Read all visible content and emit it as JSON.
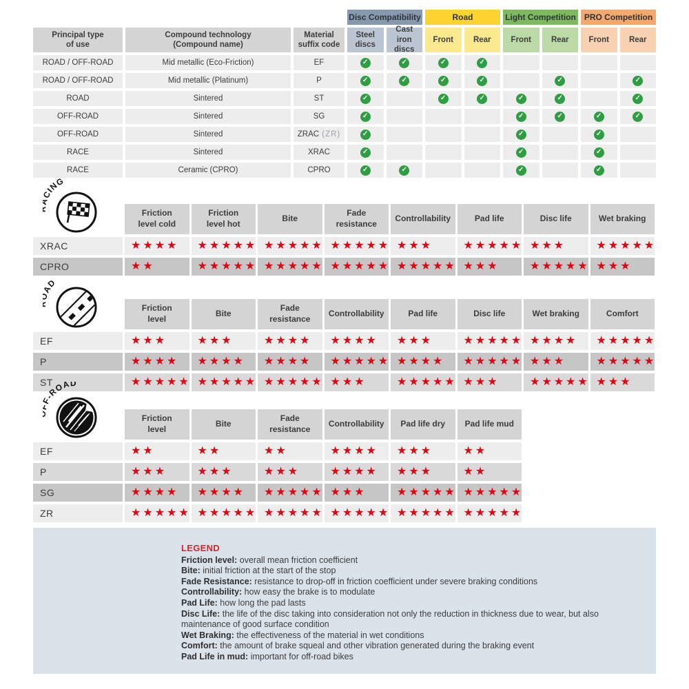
{
  "icons": {
    "check": "✓",
    "star": "★"
  },
  "colors": {
    "star_red": "#da0812",
    "check_green": "#2f9e43",
    "header_gray": "#d4d4d4",
    "row_light": "#ededed",
    "row_mid": "#d9d9d9",
    "row_dark": "#c6c6c6",
    "legend_bg": "#dbe3ea",
    "legend_title_red": "#d8232a",
    "disc_group_bg": "#8799ae",
    "disc_sub_bg": "#bcc6d3",
    "road_group_bg": "#fdd32f",
    "road_sub_bg": "#fbe98f",
    "light_comp_group_bg": "#7cba5d",
    "light_comp_sub_bg": "#bcdaa6",
    "pro_comp_group_bg": "#f4a86c",
    "pro_comp_sub_bg": "#f9d2b2"
  },
  "chart_data": [
    {
      "type": "table",
      "id": "compatibility",
      "corner_headers": [
        "Principal type\nof use",
        "Compound technology\n(Compound name)",
        "Material\nsuffix code"
      ],
      "groups": [
        {
          "label": "Disc Compatibility",
          "header_bg": "#8799ae",
          "sub_bg": "#bcc6d3",
          "subs": [
            "Steel\ndiscs",
            "Cast iron\ndiscs"
          ]
        },
        {
          "label": "Road",
          "header_bg": "#fdd32f",
          "sub_bg": "#fbe98f",
          "subs": [
            "Front",
            "Rear"
          ]
        },
        {
          "label": "Light Competition",
          "header_bg": "#7cba5d",
          "sub_bg": "#bcdaa6",
          "subs": [
            "Front",
            "Rear"
          ]
        },
        {
          "label": "PRO Competition",
          "header_bg": "#f4a86c",
          "sub_bg": "#f9d2b2",
          "subs": [
            "Front",
            "Rear"
          ]
        }
      ],
      "rows": [
        {
          "use": "ROAD / OFF-ROAD",
          "tech": "Mid metallic (Eco-Friction)",
          "code": "EF",
          "code_note": "",
          "checks": [
            1,
            1,
            1,
            1,
            0,
            0,
            0,
            0
          ]
        },
        {
          "use": "ROAD / OFF-ROAD",
          "tech": "Mid metallic (Platinum)",
          "code": "P",
          "code_note": "",
          "checks": [
            1,
            1,
            1,
            1,
            0,
            1,
            0,
            1
          ]
        },
        {
          "use": "ROAD",
          "tech": "Sintered",
          "code": "ST",
          "code_note": "",
          "checks": [
            1,
            0,
            1,
            1,
            1,
            1,
            0,
            1
          ]
        },
        {
          "use": "OFF-ROAD",
          "tech": "Sintered",
          "code": "SG",
          "code_note": "",
          "checks": [
            1,
            0,
            0,
            0,
            1,
            1,
            1,
            1
          ]
        },
        {
          "use": "OFF-ROAD",
          "tech": "Sintered",
          "code": "ZRAC",
          "code_note": "(ZR)",
          "checks": [
            1,
            0,
            0,
            0,
            1,
            0,
            1,
            0
          ]
        },
        {
          "use": "RACE",
          "tech": "Sintered",
          "code": "XRAC",
          "code_note": "",
          "checks": [
            1,
            0,
            0,
            0,
            1,
            0,
            1,
            0
          ]
        },
        {
          "use": "RACE",
          "tech": "Ceramic (CPRO)",
          "code": "CPRO",
          "code_note": "",
          "checks": [
            1,
            1,
            0,
            0,
            1,
            0,
            1,
            0
          ]
        }
      ]
    },
    {
      "type": "table",
      "id": "racing",
      "label": "RACING",
      "icon": "checkered-flag-icon",
      "rating_scale": [
        1,
        5
      ],
      "columns": [
        "Friction\nlevel cold",
        "Friction\nlevel hot",
        "Bite",
        "Fade\nresistance",
        "Controllability",
        "Pad life",
        "Disc life",
        "Wet braking"
      ],
      "rows": [
        {
          "code": "XRAC",
          "shade": "light",
          "stars": [
            4,
            5,
            5,
            5,
            3,
            5,
            3,
            5
          ]
        },
        {
          "code": "CPRO",
          "shade": "dark",
          "stars": [
            2,
            5,
            5,
            5,
            5,
            3,
            5,
            3
          ]
        }
      ]
    },
    {
      "type": "table",
      "id": "road",
      "label": "ROAD",
      "icon": "road-icon",
      "rating_scale": [
        1,
        5
      ],
      "columns": [
        "Friction\nlevel",
        "Bite",
        "Fade\nresistance",
        "Controllability",
        "Pad life",
        "Disc life",
        "Wet braking",
        "Comfort"
      ],
      "rows": [
        {
          "code": "EF",
          "shade": "light",
          "stars": [
            3,
            3,
            4,
            4,
            3,
            5,
            4,
            5
          ]
        },
        {
          "code": "P",
          "shade": "dark",
          "stars": [
            4,
            4,
            4,
            5,
            4,
            5,
            3,
            5
          ]
        },
        {
          "code": "ST",
          "shade": "mid",
          "stars": [
            5,
            5,
            5,
            3,
            5,
            3,
            5,
            3
          ]
        }
      ]
    },
    {
      "type": "table",
      "id": "offroad",
      "label": "OFF-ROAD",
      "icon": "mud-splash-icon",
      "rating_scale": [
        1,
        5
      ],
      "columns": [
        "Friction\nlevel",
        "Bite",
        "Fade\nresistance",
        "Controllability",
        "Pad life dry",
        "Pad life mud"
      ],
      "rows": [
        {
          "code": "EF",
          "shade": "light",
          "stars": [
            2,
            2,
            2,
            4,
            3,
            2
          ]
        },
        {
          "code": "P",
          "shade": "mid",
          "stars": [
            3,
            3,
            3,
            4,
            3,
            2
          ]
        },
        {
          "code": "SG",
          "shade": "dark",
          "stars": [
            4,
            4,
            5,
            3,
            5,
            5
          ]
        },
        {
          "code": "ZR",
          "shade": "light",
          "stars": [
            5,
            5,
            5,
            5,
            5,
            5
          ]
        }
      ]
    }
  ],
  "legend": {
    "title": "LEGEND",
    "items": [
      {
        "term": "Friction level",
        "def": "overall mean friction coefficient"
      },
      {
        "term": "Bite",
        "def": "initial friction at the start of the stop"
      },
      {
        "term": "Fade Resistance",
        "def": "resistance to drop-off in friction coefficient under severe braking conditions"
      },
      {
        "term": "Controllability",
        "def": "how easy the brake is to modulate"
      },
      {
        "term": "Pad Life",
        "def": "how long the pad lasts"
      },
      {
        "term": "Disc Life",
        "def": "the life of the disc taking into consideration not only the reduction in thickness due to wear, but also maintenance of good surface condition"
      },
      {
        "term": "Wet Braking",
        "def": "the effectiveness of the material in wet conditions"
      },
      {
        "term": "Comfort",
        "def": "the amount of brake squeal and other vibration generated during the braking event"
      },
      {
        "term": "Pad Life in mud",
        "def": "important for off-road bikes"
      }
    ]
  }
}
